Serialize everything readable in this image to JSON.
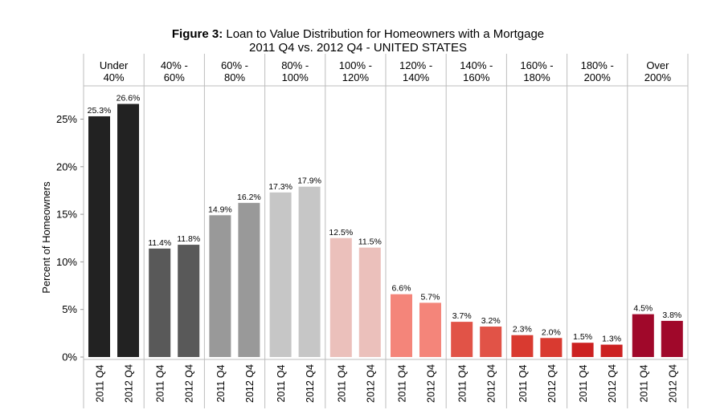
{
  "title": {
    "prefix": "Figure 3:",
    "main": "Loan to Value Distribution for Homeowners with a Mortgage",
    "subtitle": "2011 Q4 vs. 2012 Q4 - UNITED STATES"
  },
  "chart_data": {
    "type": "bar",
    "title": "Figure 3: Loan to Value Distribution for Homeowners with a Mortgage",
    "subtitle": "2011 Q4 vs. 2012 Q4 - UNITED STATES",
    "ylabel": "Percent of Homeowners",
    "xlabel": "",
    "ylim": [
      0,
      28.5
    ],
    "yticks": [
      0,
      5,
      10,
      15,
      20,
      25
    ],
    "ytick_labels": [
      "0%",
      "5%",
      "10%",
      "15%",
      "20%",
      "25%"
    ],
    "grid": false,
    "legend": "none",
    "bar_labels": [
      "2011 Q4",
      "2012 Q4"
    ],
    "groups": [
      {
        "label_lines": [
          "Under",
          "40%"
        ],
        "color": "#222222",
        "values": [
          25.3,
          26.6
        ],
        "value_labels": [
          "25.3%",
          "26.6%"
        ]
      },
      {
        "label_lines": [
          "40% -",
          "60%"
        ],
        "color": "#595959",
        "values": [
          11.4,
          11.8
        ],
        "value_labels": [
          "11.4%",
          "11.8%"
        ]
      },
      {
        "label_lines": [
          "60% -",
          "80%"
        ],
        "color": "#999999",
        "values": [
          14.9,
          16.2
        ],
        "value_labels": [
          "14.9%",
          "16.2%"
        ]
      },
      {
        "label_lines": [
          "80% -",
          "100%"
        ],
        "color": "#c6c6c6",
        "values": [
          17.3,
          17.9
        ],
        "value_labels": [
          "17.3%",
          "17.9%"
        ]
      },
      {
        "label_lines": [
          "100% -",
          "120%"
        ],
        "color": "#ebc0bb",
        "values": [
          12.5,
          11.5
        ],
        "value_labels": [
          "12.5%",
          "11.5%"
        ]
      },
      {
        "label_lines": [
          "120% -",
          "140%"
        ],
        "color": "#f4857a",
        "values": [
          6.6,
          5.7
        ],
        "value_labels": [
          "6.6%",
          "5.7%"
        ]
      },
      {
        "label_lines": [
          "140% -",
          "160%"
        ],
        "color": "#e15347",
        "values": [
          3.7,
          3.2
        ],
        "value_labels": [
          "3.7%",
          "3.2%"
        ]
      },
      {
        "label_lines": [
          "160% -",
          "180%"
        ],
        "color": "#d93a30",
        "values": [
          2.3,
          2.0
        ],
        "value_labels": [
          "2.3%",
          "2.0%"
        ]
      },
      {
        "label_lines": [
          "180% -",
          "200%"
        ],
        "color": "#cc2121",
        "values": [
          1.5,
          1.3
        ],
        "value_labels": [
          "1.5%",
          "1.3%"
        ]
      },
      {
        "label_lines": [
          "Over",
          "200%"
        ],
        "color": "#a0082a",
        "values": [
          4.5,
          3.8
        ],
        "value_labels": [
          "4.5%",
          "3.8%"
        ]
      }
    ]
  }
}
